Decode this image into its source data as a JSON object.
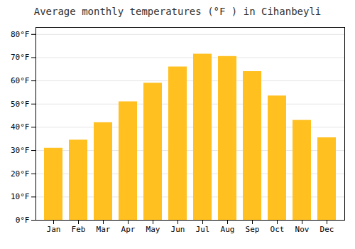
{
  "chart_data": {
    "type": "bar",
    "title": "Average monthly temperatures (°F ) in Cihanbeyli",
    "categories": [
      "Jan",
      "Feb",
      "Mar",
      "Apr",
      "May",
      "Jun",
      "Jul",
      "Aug",
      "Sep",
      "Oct",
      "Nov",
      "Dec"
    ],
    "values": [
      31,
      34.5,
      42,
      51,
      59,
      66,
      71.5,
      70.5,
      64,
      53.5,
      43,
      35.5
    ],
    "color": "#FFC020",
    "ylim": [
      0,
      83
    ],
    "yticks": [
      {
        "value": 0,
        "label": "0°F"
      },
      {
        "value": 10,
        "label": "10°F"
      },
      {
        "value": 20,
        "label": "20°F"
      },
      {
        "value": 30,
        "label": "30°F"
      },
      {
        "value": 40,
        "label": "40°F"
      },
      {
        "value": 50,
        "label": "50°F"
      },
      {
        "value": 60,
        "label": "60°F"
      },
      {
        "value": 70,
        "label": "70°F"
      },
      {
        "value": 80,
        "label": "80°F"
      }
    ],
    "grid": true
  }
}
